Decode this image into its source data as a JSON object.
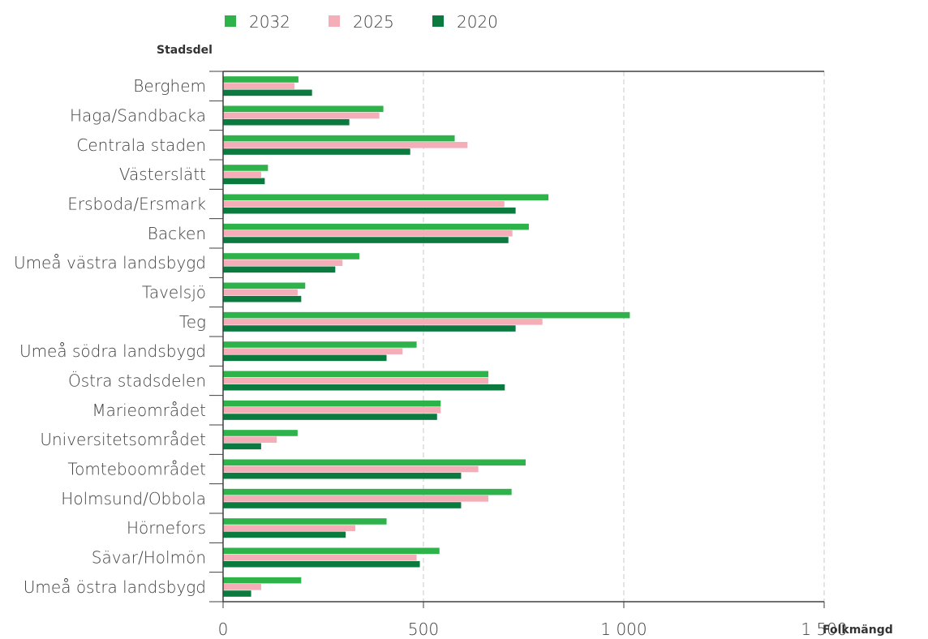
{
  "chart_data": {
    "type": "bar",
    "orientation": "horizontal",
    "ylabel": "Stadsdel",
    "xlabel": "Folkmängd",
    "xlim": [
      0,
      1500
    ],
    "xticks": [
      0,
      500,
      1000,
      1500
    ],
    "xtick_labels": [
      "0",
      "500",
      "1 000",
      "1 500"
    ],
    "grid": "vertical dashed",
    "legend_position": "top",
    "categories": [
      "Berghem",
      "Haga/Sandbacka",
      "Centrala staden",
      "Västerslätt",
      "Ersboda/Ersmark",
      "Backen",
      "Umeå västra landsbygd",
      "Tavelsjö",
      "Teg",
      "Umeå södra landsbygd",
      "Östra stadsdelen",
      "Marieområdet",
      "Universitetsområdet",
      "Tomteboområdet",
      "Holmsund/Obbola",
      "Hörnefors",
      "Sävar/Holmön",
      "Umeå östra landsbygd"
    ],
    "series": [
      {
        "name": "2032",
        "color": "#2db34a",
        "values": [
          188,
          400,
          578,
          112,
          812,
          763,
          340,
          205,
          1015,
          483,
          662,
          543,
          186,
          755,
          720,
          408,
          540,
          195
        ]
      },
      {
        "name": "2025",
        "color": "#f5adb8",
        "values": [
          178,
          390,
          610,
          95,
          702,
          722,
          298,
          186,
          797,
          448,
          662,
          543,
          134,
          637,
          662,
          330,
          483,
          95
        ]
      },
      {
        "name": "2020",
        "color": "#0b7a3e",
        "values": [
          222,
          315,
          467,
          104,
          730,
          712,
          280,
          195,
          730,
          408,
          703,
          534,
          95,
          594,
          594,
          306,
          491,
          70
        ]
      }
    ]
  }
}
